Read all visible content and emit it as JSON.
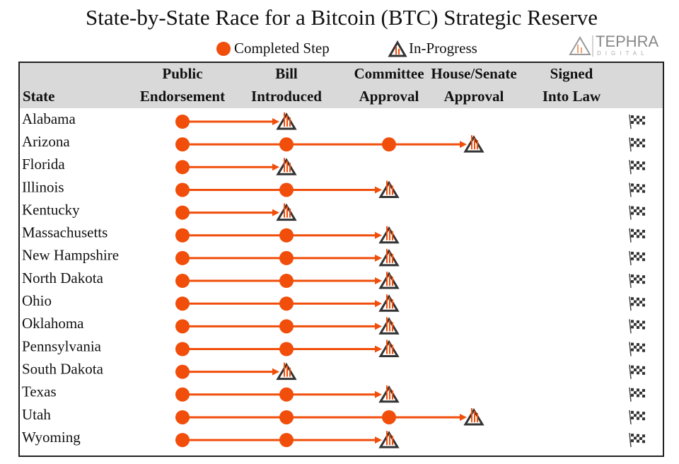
{
  "header": {
    "title": "State-by-State Race for a Bitcoin (BTC) Strategic Reserve",
    "legend": {
      "completed": "Completed Step",
      "in_progress": "In-Progress"
    },
    "brand": {
      "name": "TEPHRA",
      "sub": "DIGITAL"
    }
  },
  "table": {
    "columns": [
      [
        "State"
      ],
      [
        "Public",
        "Endorsement"
      ],
      [
        "Bill",
        "Introduced"
      ],
      [
        "Committee",
        "Approval"
      ],
      [
        "House/Senate",
        "Approval"
      ],
      [
        "Signed",
        "Into Law"
      ]
    ],
    "rows": [
      {
        "state": "Alabama",
        "completed_steps": 1
      },
      {
        "state": "Arizona",
        "completed_steps": 3
      },
      {
        "state": "Florida",
        "completed_steps": 1
      },
      {
        "state": "Illinois",
        "completed_steps": 2
      },
      {
        "state": "Kentucky",
        "completed_steps": 1
      },
      {
        "state": "Massachusetts",
        "completed_steps": 2
      },
      {
        "state": "New Hampshire",
        "completed_steps": 2
      },
      {
        "state": "North Dakota",
        "completed_steps": 2
      },
      {
        "state": "Ohio",
        "completed_steps": 2
      },
      {
        "state": "Oklahoma",
        "completed_steps": 2
      },
      {
        "state": "Pennsylvania",
        "completed_steps": 2
      },
      {
        "state": "South Dakota",
        "completed_steps": 1
      },
      {
        "state": "Texas",
        "completed_steps": 2
      },
      {
        "state": "Utah",
        "completed_steps": 3
      },
      {
        "state": "Wyoming",
        "completed_steps": 2
      }
    ]
  }
}
